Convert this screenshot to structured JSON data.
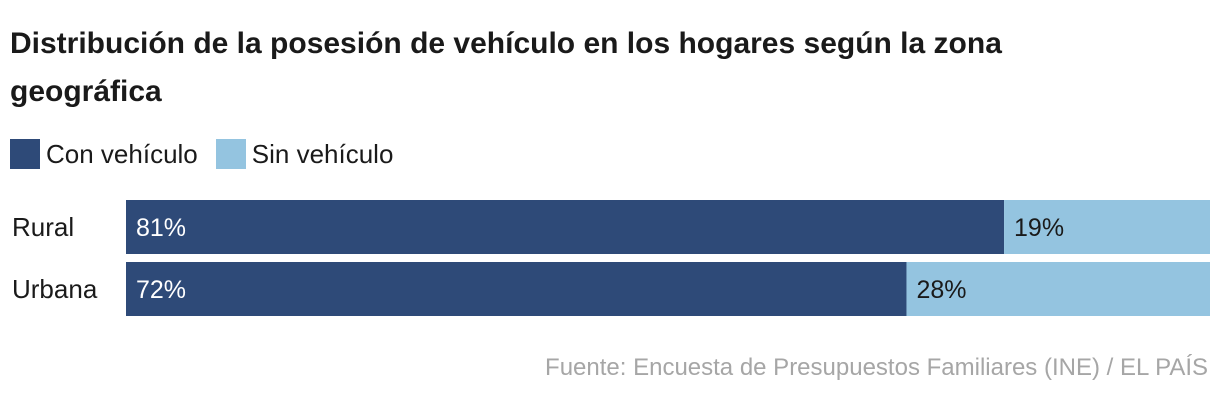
{
  "chart_data": {
    "type": "bar",
    "orientation": "horizontal",
    "stacked": true,
    "percent": true,
    "title": "Distribución de la posesión de vehículo en los hogares según la zona geográfica",
    "categories": [
      "Rural",
      "Urbana"
    ],
    "series": [
      {
        "name": "Con vehículo",
        "values": [
          81,
          72
        ],
        "labels": [
          "81%",
          "72%"
        ],
        "color": "#2e4a78",
        "label_color": "#ffffff"
      },
      {
        "name": "Sin vehículo",
        "values": [
          19,
          28
        ],
        "labels": [
          "19%",
          "28%"
        ],
        "color": "#94c4e0",
        "label_color": "#1a1a1a"
      }
    ],
    "xlim": [
      0,
      100
    ],
    "legend_position": "top-left",
    "source": "Fuente: Encuesta de Presupuestos Familiares (INE) / EL PAÍS"
  }
}
